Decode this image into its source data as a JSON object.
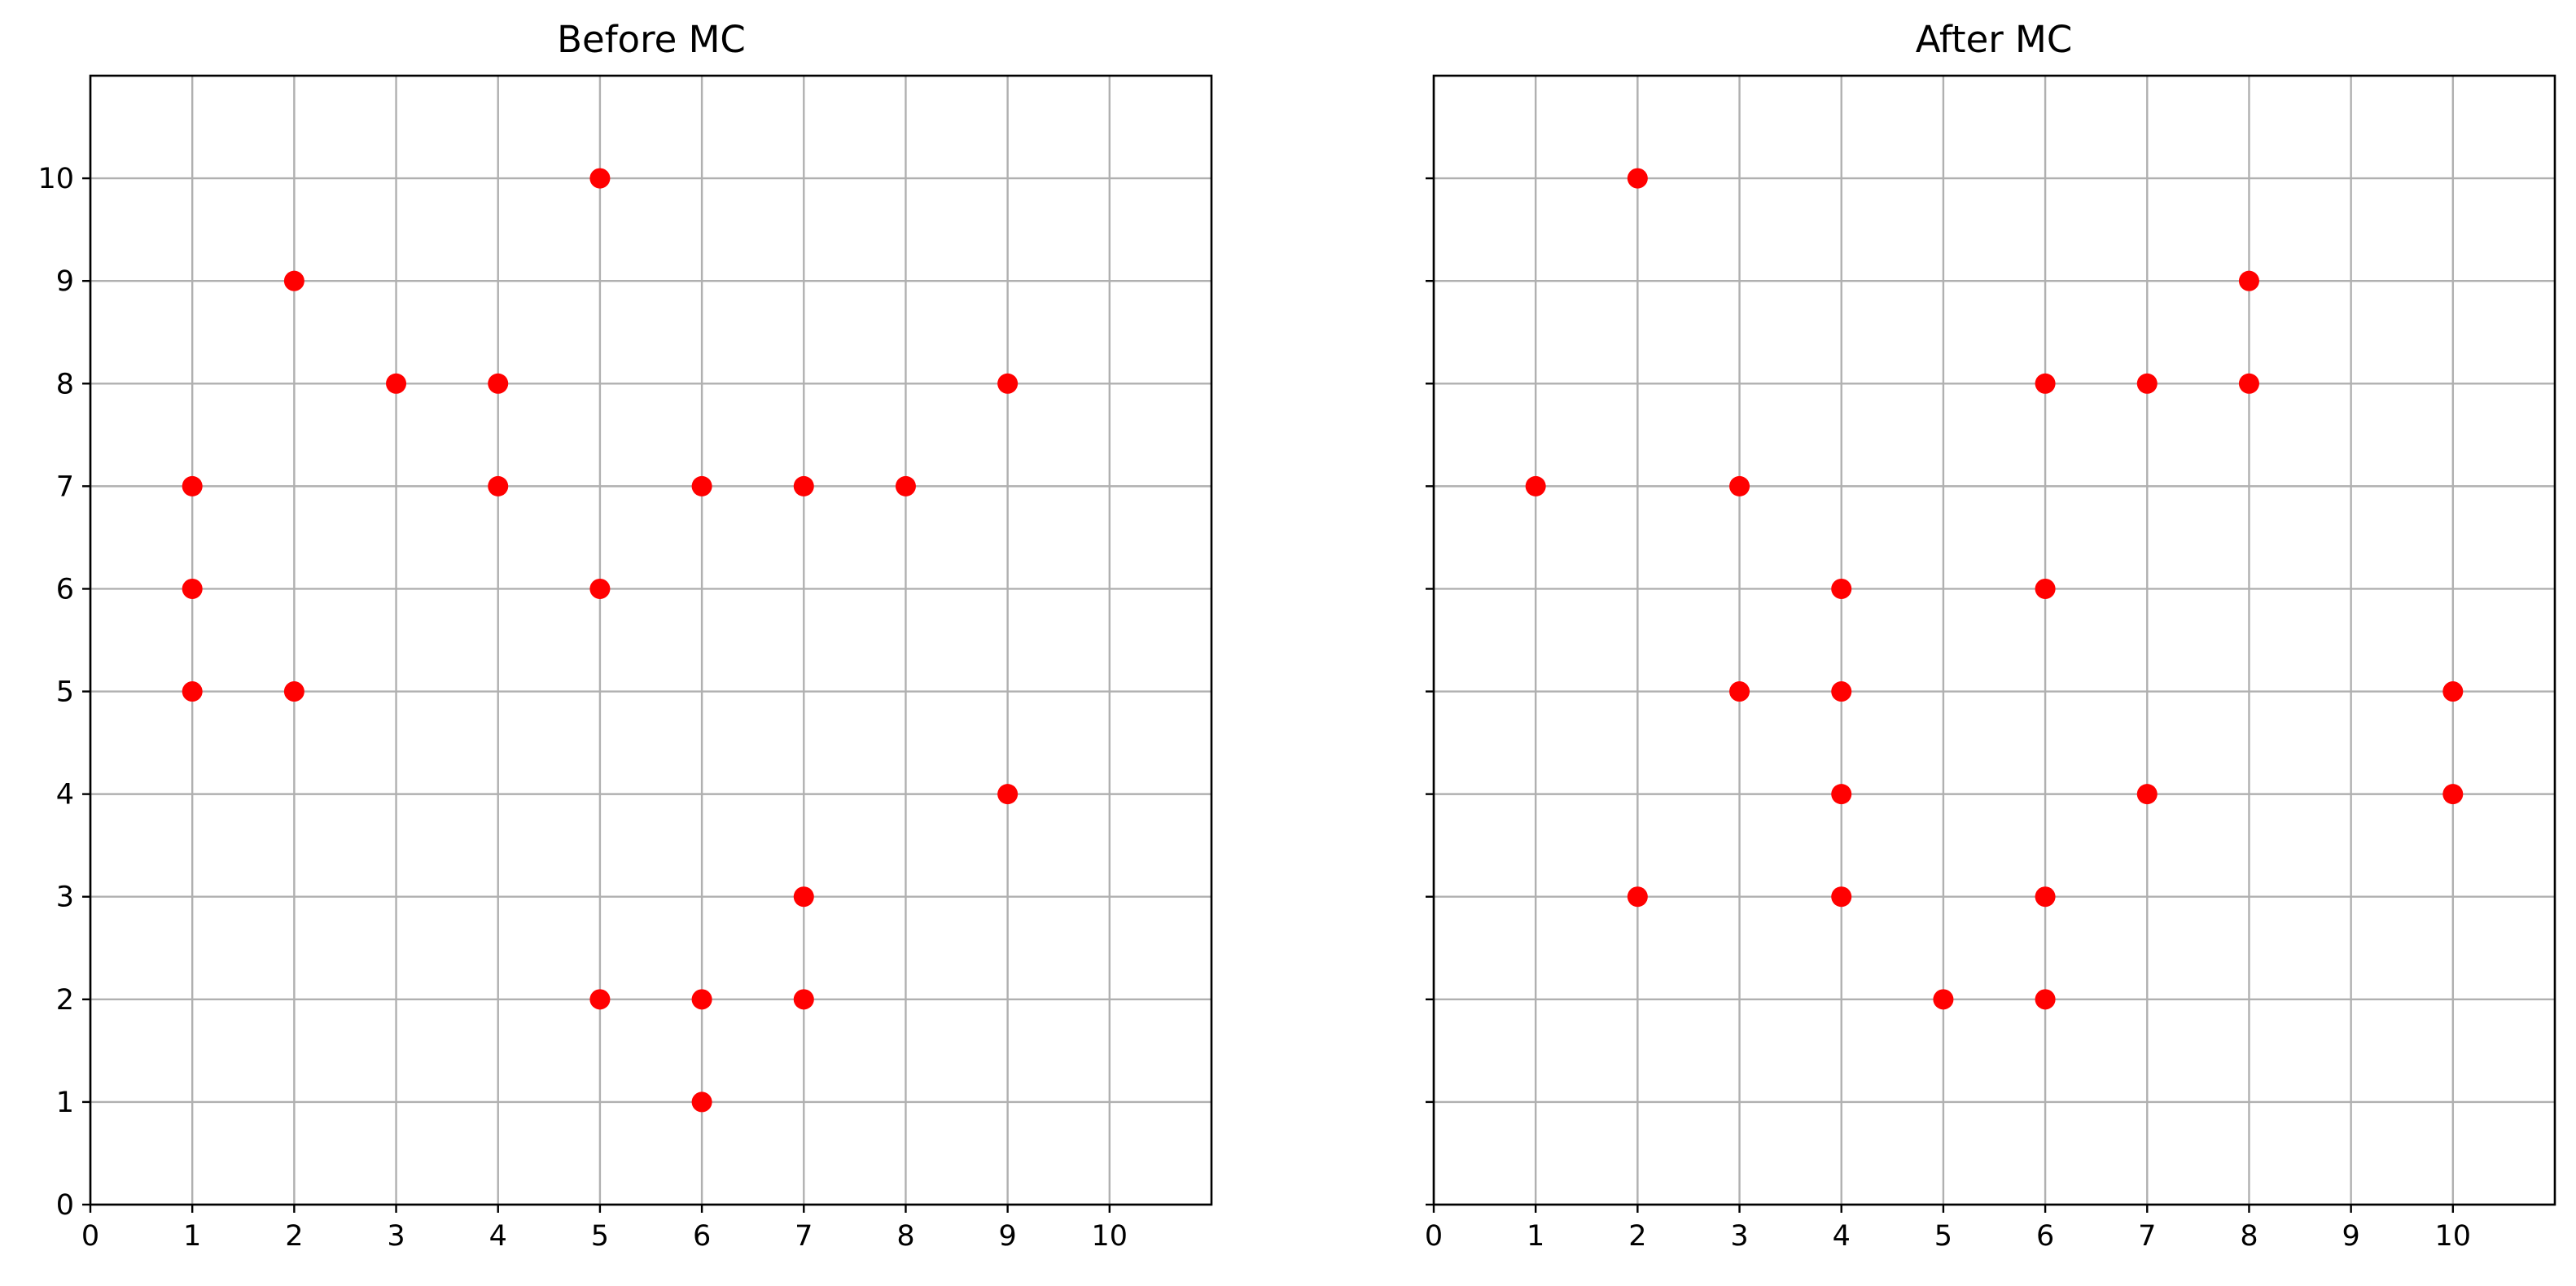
{
  "chart_data": [
    {
      "type": "scatter",
      "title": "Before MC",
      "xlabel": "",
      "ylabel": "",
      "xlim": [
        0,
        11
      ],
      "ylim": [
        0,
        11
      ],
      "xticks": [
        "0",
        "1",
        "2",
        "3",
        "4",
        "5",
        "6",
        "7",
        "8",
        "9",
        "10"
      ],
      "yticks": [
        "0",
        "1",
        "2",
        "3",
        "4",
        "5",
        "6",
        "7",
        "8",
        "9",
        "10"
      ],
      "show_ytick_labels": true,
      "grid": true,
      "marker_color": "#ff0000",
      "points": [
        [
          5,
          10
        ],
        [
          2,
          9
        ],
        [
          3,
          8
        ],
        [
          4,
          8
        ],
        [
          9,
          8
        ],
        [
          1,
          7
        ],
        [
          4,
          7
        ],
        [
          6,
          7
        ],
        [
          7,
          7
        ],
        [
          8,
          7
        ],
        [
          1,
          6
        ],
        [
          5,
          6
        ],
        [
          1,
          5
        ],
        [
          2,
          5
        ],
        [
          9,
          4
        ],
        [
          7,
          3
        ],
        [
          5,
          2
        ],
        [
          6,
          2
        ],
        [
          7,
          2
        ],
        [
          6,
          1
        ]
      ]
    },
    {
      "type": "scatter",
      "title": "After MC",
      "xlabel": "",
      "ylabel": "",
      "xlim": [
        0,
        11
      ],
      "ylim": [
        0,
        11
      ],
      "xticks": [
        "0",
        "1",
        "2",
        "3",
        "4",
        "5",
        "6",
        "7",
        "8",
        "9",
        "10"
      ],
      "yticks": [
        "0",
        "1",
        "2",
        "3",
        "4",
        "5",
        "6",
        "7",
        "8",
        "9",
        "10"
      ],
      "show_ytick_labels": false,
      "grid": true,
      "marker_color": "#ff0000",
      "points": [
        [
          2,
          10
        ],
        [
          8,
          9
        ],
        [
          6,
          8
        ],
        [
          7,
          8
        ],
        [
          8,
          8
        ],
        [
          1,
          7
        ],
        [
          3,
          7
        ],
        [
          4,
          6
        ],
        [
          6,
          6
        ],
        [
          3,
          5
        ],
        [
          4,
          5
        ],
        [
          10,
          5
        ],
        [
          4,
          4
        ],
        [
          7,
          4
        ],
        [
          10,
          4
        ],
        [
          2,
          3
        ],
        [
          4,
          3
        ],
        [
          6,
          3
        ],
        [
          5,
          2
        ],
        [
          6,
          2
        ]
      ]
    }
  ]
}
